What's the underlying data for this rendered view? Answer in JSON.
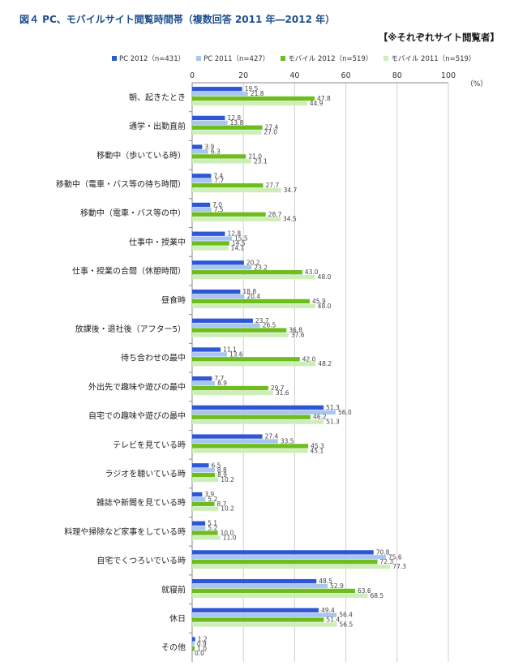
{
  "title": "図４ PC、モバイルサイト閲覧時間帯（複数回答 2011 年―2012 年）",
  "audience": "【※それぞれサイト閲覧者】",
  "unit": "（%）",
  "colors": {
    "pc2012": "#2e56d6",
    "pc2011": "#a8c6ee",
    "mb2012": "#6dbd1d",
    "mb2011": "#cdeeb8",
    "grid": "#cfcfcf",
    "axis": "#888888"
  },
  "legend": [
    {
      "label": "PC 2012（n=431）",
      "color": "#2e56d6"
    },
    {
      "label": "PC 2011（n=427）",
      "color": "#a8c6ee"
    },
    {
      "label": "モバイル 2012（n=519）",
      "color": "#6dbd1d"
    },
    {
      "label": "モバイル 2011（n=519）",
      "color": "#cdeeb8"
    }
  ],
  "chart_data": {
    "type": "bar",
    "orientation": "horizontal",
    "title": "図４ PC、モバイルサイト閲覧時間帯（複数回答 2011 年―2012 年）",
    "xlabel": "（%）",
    "ylabel": "",
    "xlim": [
      0,
      100
    ],
    "xticks": [
      0,
      20,
      40,
      60,
      80,
      100
    ],
    "categories": [
      "朝、起きたとき",
      "通学・出勤直前",
      "移動中（歩いている時）",
      "移動中（電車・バス等の待ち時間）",
      "移動中（電車・バス等の中）",
      "仕事中・授業中",
      "仕事・授業の合間（休憩時間）",
      "昼食時",
      "放課後・退社後（アフター5）",
      "待ち合わせの最中",
      "外出先で趣味や遊びの最中",
      "自宅での趣味や遊びの最中",
      "テレビを見ている時",
      "ラジオを聴いている時",
      "雑誌や新聞を見ている時",
      "料理や掃除など家事をしている時",
      "自宅でくつろいでいる時",
      "就寝前",
      "休日",
      "その他"
    ],
    "series": [
      {
        "name": "PC 2012（n=431）",
        "values": [
          19.5,
          12.8,
          3.9,
          7.4,
          7.0,
          12.8,
          20.2,
          18.8,
          23.7,
          11.1,
          7.7,
          51.3,
          27.4,
          6.5,
          3.9,
          5.1,
          70.8,
          48.5,
          49.4,
          1.2
        ]
      },
      {
        "name": "PC 2011（n=427）",
        "values": [
          21.8,
          13.8,
          6.3,
          7.7,
          7.5,
          15.5,
          23.2,
          20.4,
          26.5,
          13.6,
          8.9,
          56.0,
          33.5,
          8.8,
          5.2,
          5.2,
          75.6,
          52.9,
          56.4,
          0.9
        ]
      },
      {
        "name": "モバイル 2012（n=519）",
        "values": [
          47.8,
          27.4,
          21.0,
          27.7,
          28.7,
          14.5,
          43.0,
          45.9,
          36.8,
          42.0,
          29.7,
          46.2,
          45.3,
          8.9,
          8.7,
          10.0,
          72.3,
          63.6,
          51.4,
          1.0
        ]
      },
      {
        "name": "モバイル 2011（n=519）",
        "values": [
          44.9,
          27.0,
          23.1,
          34.7,
          34.5,
          14.1,
          48.0,
          48.0,
          37.6,
          48.2,
          31.6,
          51.3,
          45.1,
          10.2,
          10.2,
          11.0,
          77.3,
          68.5,
          56.5,
          0.0
        ]
      }
    ],
    "grid": true,
    "legend_position": "top"
  }
}
